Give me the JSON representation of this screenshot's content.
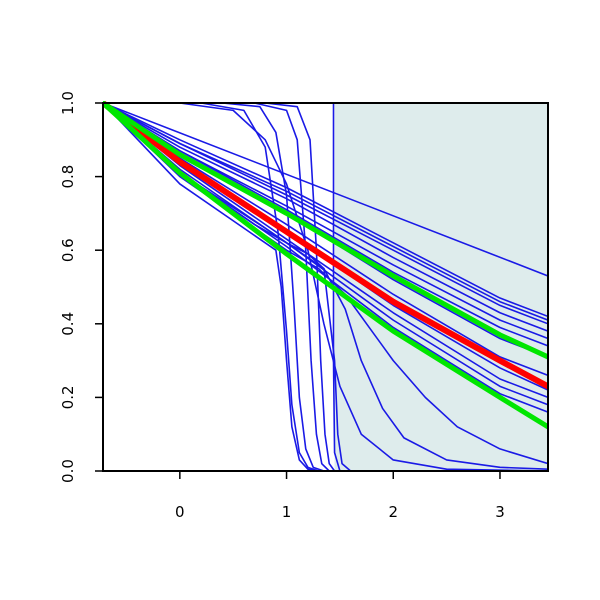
{
  "chart_data": {
    "type": "line",
    "title": "",
    "xlabel": "",
    "ylabel": "",
    "xlim": [
      -0.72,
      3.45
    ],
    "ylim": [
      0,
      1
    ],
    "x_ticks": [
      0,
      1,
      2,
      3
    ],
    "y_ticks": [
      0.0,
      0.2,
      0.4,
      0.6,
      0.8,
      1.0
    ],
    "x_tick_labels": [
      "0",
      "1",
      "2",
      "3"
    ],
    "y_tick_labels": [
      "0.0",
      "0.2",
      "0.4",
      "0.6",
      "0.8",
      "1.0"
    ],
    "shaded_region": {
      "x_from": 1.45,
      "x_to": 3.45,
      "color": "#deecec"
    },
    "grid": false,
    "legend": "none",
    "colors": {
      "blue": "#1a1ae6",
      "red": "#ff0000",
      "green": "#00e600",
      "axis": "#000000"
    },
    "series": [
      {
        "color": "blue",
        "width": 1.6,
        "points": [
          [
            -0.72,
            1.0
          ],
          [
            3.45,
            0.53
          ]
        ]
      },
      {
        "color": "blue",
        "width": 1.6,
        "points": [
          [
            -0.72,
            1.0
          ],
          [
            0.0,
            0.9
          ],
          [
            1.0,
            0.77
          ],
          [
            2.0,
            0.62
          ],
          [
            3.0,
            0.47
          ],
          [
            3.45,
            0.42
          ]
        ]
      },
      {
        "color": "blue",
        "width": 1.6,
        "points": [
          [
            -0.72,
            1.0
          ],
          [
            0.0,
            0.89
          ],
          [
            1.0,
            0.76
          ],
          [
            2.0,
            0.61
          ],
          [
            3.0,
            0.46
          ],
          [
            3.45,
            0.41
          ]
        ]
      },
      {
        "color": "blue",
        "width": 1.6,
        "points": [
          [
            -0.72,
            1.0
          ],
          [
            0.0,
            0.89
          ],
          [
            1.0,
            0.75
          ],
          [
            2.0,
            0.6
          ],
          [
            3.0,
            0.45
          ],
          [
            3.45,
            0.4
          ]
        ]
      },
      {
        "color": "blue",
        "width": 1.6,
        "points": [
          [
            -0.72,
            1.0
          ],
          [
            0.0,
            0.88
          ],
          [
            1.0,
            0.74
          ],
          [
            2.0,
            0.58
          ],
          [
            3.0,
            0.43
          ],
          [
            3.45,
            0.38
          ]
        ]
      },
      {
        "color": "blue",
        "width": 1.6,
        "points": [
          [
            -0.72,
            1.0
          ],
          [
            0.0,
            0.87
          ],
          [
            1.0,
            0.72
          ],
          [
            2.0,
            0.56
          ],
          [
            3.0,
            0.41
          ],
          [
            3.45,
            0.36
          ]
        ]
      },
      {
        "color": "blue",
        "width": 1.6,
        "points": [
          [
            -0.72,
            1.0
          ],
          [
            0.0,
            0.87
          ],
          [
            1.0,
            0.71
          ],
          [
            2.0,
            0.54
          ],
          [
            3.0,
            0.39
          ],
          [
            3.45,
            0.34
          ]
        ]
      },
      {
        "color": "blue",
        "width": 1.6,
        "points": [
          [
            -0.72,
            1.0
          ],
          [
            0.0,
            0.86
          ],
          [
            1.0,
            0.7
          ],
          [
            2.0,
            0.52
          ],
          [
            3.0,
            0.36
          ],
          [
            3.45,
            0.31
          ]
        ]
      },
      {
        "color": "blue",
        "width": 1.6,
        "points": [
          [
            -0.72,
            1.0
          ],
          [
            0.0,
            0.85
          ],
          [
            1.0,
            0.67
          ],
          [
            2.0,
            0.48
          ],
          [
            3.0,
            0.31
          ],
          [
            3.45,
            0.26
          ]
        ]
      },
      {
        "color": "blue",
        "width": 1.6,
        "points": [
          [
            -0.72,
            1.0
          ],
          [
            0.0,
            0.84
          ],
          [
            1.0,
            0.65
          ],
          [
            2.0,
            0.45
          ],
          [
            3.0,
            0.28
          ],
          [
            3.45,
            0.22
          ]
        ]
      },
      {
        "color": "blue",
        "width": 1.6,
        "points": [
          [
            -0.72,
            1.0
          ],
          [
            0.0,
            0.83
          ],
          [
            1.0,
            0.63
          ],
          [
            2.0,
            0.43
          ],
          [
            3.0,
            0.25
          ],
          [
            3.45,
            0.2
          ]
        ]
      },
      {
        "color": "blue",
        "width": 1.6,
        "points": [
          [
            -0.72,
            1.0
          ],
          [
            0.0,
            0.82
          ],
          [
            1.0,
            0.62
          ],
          [
            2.0,
            0.41
          ],
          [
            3.0,
            0.23
          ],
          [
            3.45,
            0.18
          ]
        ]
      },
      {
        "color": "blue",
        "width": 1.6,
        "points": [
          [
            -0.72,
            1.0
          ],
          [
            0.0,
            0.81
          ],
          [
            1.0,
            0.61
          ],
          [
            2.0,
            0.39
          ],
          [
            3.0,
            0.21
          ],
          [
            3.45,
            0.16
          ]
        ]
      },
      {
        "color": "blue",
        "width": 1.6,
        "points": [
          [
            -0.72,
            1.0
          ],
          [
            0.0,
            0.8
          ],
          [
            0.8,
            0.64
          ],
          [
            1.0,
            0.6
          ],
          [
            1.3,
            0.55
          ],
          [
            1.55,
            0.48
          ],
          [
            1.8,
            0.38
          ],
          [
            2.0,
            0.3
          ],
          [
            2.3,
            0.2
          ],
          [
            2.6,
            0.12
          ],
          [
            3.0,
            0.06
          ],
          [
            3.45,
            0.02
          ]
        ]
      },
      {
        "color": "blue",
        "width": 1.6,
        "points": [
          [
            -0.72,
            1.0
          ],
          [
            0.0,
            0.81
          ],
          [
            0.8,
            0.66
          ],
          [
            1.1,
            0.6
          ],
          [
            1.35,
            0.55
          ],
          [
            1.55,
            0.44
          ],
          [
            1.7,
            0.3
          ],
          [
            1.9,
            0.17
          ],
          [
            2.1,
            0.09
          ],
          [
            2.5,
            0.03
          ],
          [
            3.0,
            0.01
          ],
          [
            3.45,
            0.005
          ]
        ]
      },
      {
        "color": "blue",
        "width": 1.6,
        "points": [
          [
            -0.72,
            1.0
          ],
          [
            0.0,
            0.81
          ],
          [
            0.7,
            0.67
          ],
          [
            1.0,
            0.62
          ],
          [
            1.2,
            0.59
          ],
          [
            1.35,
            0.55
          ],
          [
            1.45,
            0.3
          ],
          [
            1.48,
            0.1
          ],
          [
            1.52,
            0.02
          ],
          [
            1.6,
            0.0
          ],
          [
            3.45,
            0.0
          ]
        ]
      },
      {
        "color": "blue",
        "width": 1.6,
        "points": [
          [
            -0.72,
            1.0
          ],
          [
            0.0,
            0.78
          ],
          [
            0.6,
            0.66
          ],
          [
            0.9,
            0.6
          ],
          [
            0.95,
            0.5
          ],
          [
            1.0,
            0.3
          ],
          [
            1.05,
            0.12
          ],
          [
            1.12,
            0.03
          ],
          [
            1.2,
            0.005
          ],
          [
            1.3,
            0.0
          ],
          [
            3.45,
            0.0
          ]
        ]
      },
      {
        "color": "blue",
        "width": 1.6,
        "points": [
          [
            -0.72,
            1.0
          ],
          [
            0.0,
            1.0
          ],
          [
            0.5,
            0.98
          ],
          [
            0.8,
            0.9
          ],
          [
            1.0,
            0.78
          ],
          [
            1.2,
            0.6
          ],
          [
            1.35,
            0.4
          ],
          [
            1.5,
            0.23
          ],
          [
            1.7,
            0.1
          ],
          [
            2.0,
            0.03
          ],
          [
            2.5,
            0.005
          ],
          [
            3.45,
            0.0
          ]
        ]
      },
      {
        "color": "blue",
        "width": 1.6,
        "points": [
          [
            -0.72,
            1.0
          ],
          [
            0.2,
            1.0
          ],
          [
            0.6,
            0.98
          ],
          [
            0.8,
            0.88
          ],
          [
            0.92,
            0.65
          ],
          [
            1.0,
            0.38
          ],
          [
            1.05,
            0.18
          ],
          [
            1.12,
            0.05
          ],
          [
            1.2,
            0.01
          ],
          [
            1.3,
            0.0
          ],
          [
            3.45,
            0.0
          ]
        ]
      },
      {
        "color": "blue",
        "width": 1.6,
        "points": [
          [
            -0.72,
            1.0
          ],
          [
            0.4,
            1.0
          ],
          [
            0.75,
            0.99
          ],
          [
            0.9,
            0.92
          ],
          [
            1.0,
            0.75
          ],
          [
            1.07,
            0.45
          ],
          [
            1.12,
            0.2
          ],
          [
            1.18,
            0.06
          ],
          [
            1.25,
            0.01
          ],
          [
            1.35,
            0.0
          ],
          [
            3.45,
            0.0
          ]
        ]
      },
      {
        "color": "blue",
        "width": 1.6,
        "points": [
          [
            -0.72,
            1.0
          ],
          [
            0.7,
            1.0
          ],
          [
            1.0,
            0.98
          ],
          [
            1.1,
            0.9
          ],
          [
            1.18,
            0.6
          ],
          [
            1.23,
            0.3
          ],
          [
            1.28,
            0.1
          ],
          [
            1.33,
            0.02
          ],
          [
            1.4,
            0.0
          ],
          [
            3.45,
            0.0
          ]
        ]
      },
      {
        "color": "blue",
        "width": 1.6,
        "points": [
          [
            -0.72,
            1.0
          ],
          [
            0.8,
            1.0
          ],
          [
            1.1,
            0.99
          ],
          [
            1.22,
            0.9
          ],
          [
            1.28,
            0.6
          ],
          [
            1.32,
            0.3
          ],
          [
            1.36,
            0.1
          ],
          [
            1.4,
            0.02
          ],
          [
            1.45,
            0.0
          ],
          [
            3.45,
            0.0
          ]
        ]
      },
      {
        "color": "blue",
        "width": 1.6,
        "points": [
          [
            -0.72,
            1.0
          ],
          [
            1.44,
            1.0
          ],
          [
            1.44,
            0.3
          ],
          [
            1.45,
            0.05
          ],
          [
            1.5,
            0.0
          ],
          [
            3.45,
            0.0
          ]
        ]
      },
      {
        "color": "red",
        "width": 6,
        "points": [
          [
            -0.72,
            1.0
          ],
          [
            0.0,
            0.84
          ],
          [
            1.0,
            0.65
          ],
          [
            2.0,
            0.46
          ],
          [
            3.0,
            0.3
          ],
          [
            3.45,
            0.23
          ]
        ]
      },
      {
        "color": "green",
        "width": 5,
        "points": [
          [
            -0.72,
            1.0
          ],
          [
            0.0,
            0.86
          ],
          [
            1.0,
            0.7
          ],
          [
            2.0,
            0.53
          ],
          [
            3.0,
            0.37
          ],
          [
            3.45,
            0.31
          ]
        ]
      },
      {
        "color": "green",
        "width": 5,
        "points": [
          [
            -0.72,
            1.0
          ],
          [
            0.0,
            0.81
          ],
          [
            1.0,
            0.59
          ],
          [
            2.0,
            0.38
          ],
          [
            3.0,
            0.2
          ],
          [
            3.45,
            0.12
          ]
        ]
      }
    ]
  }
}
